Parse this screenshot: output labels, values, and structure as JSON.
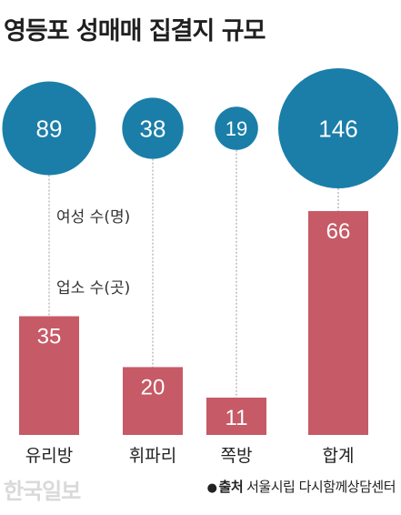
{
  "chart_data": {
    "type": "bar",
    "title": "영등포 성매매 집결지 규모",
    "categories": [
      "유리방",
      "휘파리",
      "쪽방",
      "합계"
    ],
    "series": [
      {
        "name": "여성 수(명)",
        "display": "bubble",
        "values": [
          89,
          38,
          19,
          146
        ],
        "color": "#1a7ea8"
      },
      {
        "name": "업소 수(곳)",
        "display": "bar",
        "values": [
          35,
          20,
          11,
          66
        ],
        "color": "#c65a66"
      }
    ],
    "annotations": [
      "여성 수(명)",
      "업소 수(곳)"
    ],
    "legend": "none",
    "grid": false
  },
  "footer": {
    "watermark": "한국일보",
    "source_label": "출처",
    "source_text": "서울시립 다시함께상담센터"
  }
}
